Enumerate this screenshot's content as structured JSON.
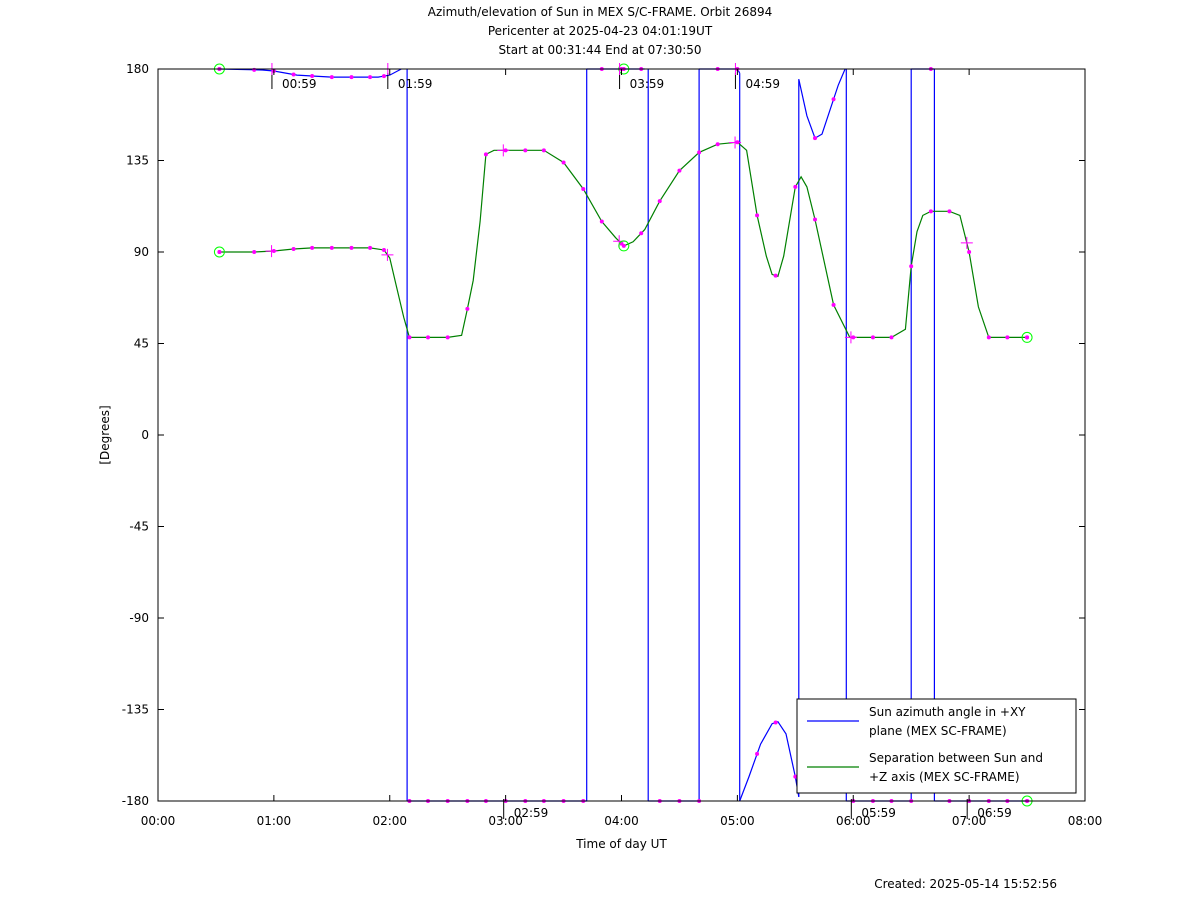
{
  "title_lines": [
    "Azimuth/elevation of Sun in MEX S/C-FRAME.  Orbit 26894",
    "Pericenter at 2025-04-23 04:01:19UT",
    "Start at 00:31:44 End at 07:30:50"
  ],
  "created": "Created: 2025-05-14 15:52:56",
  "colors": {
    "azimuth": "#0000ff",
    "separation": "#008000",
    "markers": "#ff00ff",
    "endpoints": "#00ff00",
    "axes": "#000000"
  },
  "chart_data": {
    "type": "line",
    "xlabel": "Time of day UT",
    "ylabel": "[Degrees]",
    "xlim": [
      0,
      8
    ],
    "ylim": [
      -180,
      180
    ],
    "x_unit": "hours of day UT",
    "x_ticks": [
      0,
      1,
      2,
      3,
      4,
      5,
      6,
      7,
      8
    ],
    "x_tick_labels": [
      "00:00",
      "01:00",
      "02:00",
      "03:00",
      "04:00",
      "05:00",
      "06:00",
      "07:00",
      "08:00"
    ],
    "y_ticks": [
      180,
      135,
      90,
      45,
      0,
      -45,
      -90,
      -135,
      -180
    ],
    "y_tick_labels": [
      "180",
      "135",
      "90",
      "45",
      "0",
      "-45",
      "-90",
      "-135",
      "-180"
    ],
    "legend_position": "bottom-right",
    "legend": [
      {
        "label_lines": [
          "Sun azimuth angle in +XY",
          "plane (MEX SC-FRAME)"
        ],
        "color": "#0000ff"
      },
      {
        "label_lines": [
          "Separation between Sun and",
          "+Z axis (MEX SC-FRAME)"
        ],
        "color": "#008000"
      }
    ],
    "hour_markers": [
      {
        "x": 0.9833,
        "y": 180,
        "label": "00:59",
        "side": "below"
      },
      {
        "x": 1.9833,
        "y": 180,
        "label": "01:59",
        "side": "below"
      },
      {
        "x": 2.9833,
        "y": -180,
        "label": "02:59",
        "side": "above"
      },
      {
        "x": 3.9833,
        "y": 180,
        "label": "03:59",
        "side": "below"
      },
      {
        "x": 4.9833,
        "y": 180,
        "label": "04:59",
        "side": "below"
      },
      {
        "x": 5.9833,
        "y": -180,
        "label": "05:59",
        "side": "above"
      },
      {
        "x": 6.9833,
        "y": -180,
        "label": "06:59",
        "side": "above"
      }
    ],
    "series": [
      {
        "name": "Sun azimuth angle in +XY plane (MEX SC-FRAME)",
        "color": "#0000ff",
        "segments": [
          [
            [
              0.53,
              180
            ],
            [
              0.9,
              179.5
            ],
            [
              1.0,
              179
            ],
            [
              1.2,
              177
            ],
            [
              1.5,
              176
            ],
            [
              1.7,
              176
            ],
            [
              1.9,
              176
            ],
            [
              2.0,
              177
            ],
            [
              2.1,
              180
            ]
          ],
          [
            [
              2.15,
              180
            ],
            [
              2.15,
              -180
            ]
          ],
          [
            [
              2.15,
              -180
            ],
            [
              2.5,
              -180
            ],
            [
              3.0,
              -180
            ],
            [
              3.5,
              -180
            ],
            [
              3.7,
              -180
            ]
          ],
          [
            [
              3.7,
              -180
            ],
            [
              3.7,
              180
            ]
          ],
          [
            [
              3.7,
              180
            ],
            [
              4.0,
              180
            ],
            [
              4.2,
              180
            ]
          ],
          [
            [
              4.23,
              180
            ],
            [
              4.23,
              -180
            ]
          ],
          [
            [
              4.23,
              -180
            ],
            [
              4.5,
              -180
            ],
            [
              4.67,
              -180
            ]
          ],
          [
            [
              4.67,
              -180
            ],
            [
              4.67,
              180
            ]
          ],
          [
            [
              4.67,
              180
            ],
            [
              4.85,
              180
            ],
            [
              5.0,
              180
            ],
            [
              5.02,
              178
            ]
          ],
          [
            [
              5.02,
              178
            ],
            [
              5.02,
              -180
            ]
          ],
          [
            [
              5.02,
              -180
            ],
            [
              5.1,
              -168
            ],
            [
              5.2,
              -152
            ],
            [
              5.3,
              -142
            ],
            [
              5.35,
              -141
            ],
            [
              5.42,
              -147
            ],
            [
              5.5,
              -168
            ],
            [
              5.53,
              -178
            ]
          ],
          [
            [
              5.53,
              -178
            ],
            [
              5.53,
              175
            ]
          ],
          [
            [
              5.53,
              175
            ],
            [
              5.6,
              157
            ],
            [
              5.67,
              146
            ],
            [
              5.73,
              148
            ],
            [
              5.8,
              160
            ],
            [
              5.87,
              172
            ],
            [
              5.93,
              180
            ]
          ],
          [
            [
              5.94,
              180
            ],
            [
              5.94,
              -180
            ]
          ],
          [
            [
              5.94,
              -180
            ],
            [
              6.3,
              -180
            ],
            [
              6.5,
              -180
            ]
          ],
          [
            [
              6.5,
              -180
            ],
            [
              6.5,
              180
            ]
          ],
          [
            [
              6.5,
              180
            ],
            [
              6.6,
              180
            ],
            [
              6.7,
              180
            ]
          ],
          [
            [
              6.7,
              180
            ],
            [
              6.7,
              -180
            ]
          ],
          [
            [
              6.7,
              -180
            ],
            [
              7.0,
              -180
            ],
            [
              7.2,
              -180
            ],
            [
              7.5,
              -180
            ]
          ]
        ]
      },
      {
        "name": "Separation between Sun and +Z axis (MEX SC-FRAME)",
        "color": "#008000",
        "points": [
          [
            0.53,
            90
          ],
          [
            0.83,
            90
          ],
          [
            1.0,
            90.5
          ],
          [
            1.17,
            91.5
          ],
          [
            1.33,
            92
          ],
          [
            1.5,
            92
          ],
          [
            1.67,
            92
          ],
          [
            1.83,
            92
          ],
          [
            1.95,
            91
          ],
          [
            2.0,
            87
          ],
          [
            2.05,
            75
          ],
          [
            2.12,
            58
          ],
          [
            2.17,
            48
          ],
          [
            2.33,
            48
          ],
          [
            2.5,
            48
          ],
          [
            2.62,
            49
          ],
          [
            2.67,
            62
          ],
          [
            2.72,
            76
          ],
          [
            2.78,
            105
          ],
          [
            2.83,
            138
          ],
          [
            2.9,
            140
          ],
          [
            3.0,
            140
          ],
          [
            3.17,
            140
          ],
          [
            3.33,
            140
          ],
          [
            3.5,
            134
          ],
          [
            3.67,
            121
          ],
          [
            3.83,
            105
          ],
          [
            3.95,
            97
          ],
          [
            4.02,
            93
          ],
          [
            4.1,
            95
          ],
          [
            4.2,
            101
          ],
          [
            4.33,
            115
          ],
          [
            4.5,
            130
          ],
          [
            4.67,
            139
          ],
          [
            4.83,
            143
          ],
          [
            5.0,
            144
          ],
          [
            5.08,
            140
          ],
          [
            5.17,
            108
          ],
          [
            5.25,
            88
          ],
          [
            5.3,
            79
          ],
          [
            5.35,
            78
          ],
          [
            5.4,
            88
          ],
          [
            5.5,
            122
          ],
          [
            5.55,
            127
          ],
          [
            5.6,
            122
          ],
          [
            5.67,
            106
          ],
          [
            5.83,
            64
          ],
          [
            5.97,
            48
          ],
          [
            6.17,
            48
          ],
          [
            6.33,
            48
          ],
          [
            6.45,
            52
          ],
          [
            6.5,
            83
          ],
          [
            6.55,
            100
          ],
          [
            6.6,
            108
          ],
          [
            6.67,
            110
          ],
          [
            6.83,
            110
          ],
          [
            6.92,
            108
          ],
          [
            7.0,
            90
          ],
          [
            7.08,
            63
          ],
          [
            7.17,
            48
          ],
          [
            7.33,
            48
          ],
          [
            7.5,
            48
          ]
        ]
      }
    ],
    "marker_points_separation": [
      0.53,
      0.83,
      1.0,
      1.17,
      1.33,
      1.5,
      1.67,
      1.83,
      1.95,
      2.17,
      2.33,
      2.5,
      2.67,
      2.83,
      3.0,
      3.17,
      3.33,
      3.5,
      3.67,
      3.83,
      4.0,
      4.17,
      4.33,
      4.5,
      4.67,
      4.83,
      5.0,
      5.17,
      5.33,
      5.5,
      5.67,
      5.83,
      6.0,
      6.17,
      6.33,
      6.5,
      6.67,
      6.83,
      7.0,
      7.17,
      7.33,
      7.5
    ],
    "endpoints": [
      [
        0.53,
        180
      ],
      [
        0.53,
        90
      ],
      [
        4.02,
        180
      ],
      [
        4.02,
        93
      ],
      [
        7.5,
        -180
      ],
      [
        7.5,
        48
      ]
    ]
  }
}
